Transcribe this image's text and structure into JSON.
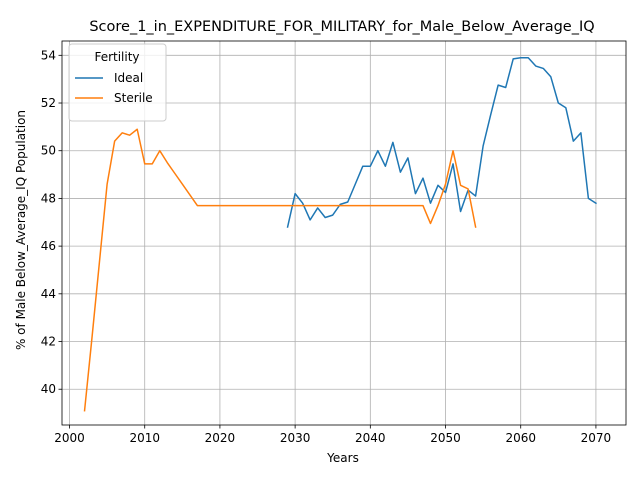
{
  "chart_data": {
    "type": "line",
    "title": "Score_1_in_EXPENDITURE_FOR_MILITARY_for_Male_Below_Average_IQ",
    "xlabel": "Years",
    "ylabel": "% of Male Below_Average_IQ Population",
    "xlim": [
      1999,
      2074
    ],
    "ylim": [
      38.5,
      54.6
    ],
    "x_ticks": [
      2000,
      2010,
      2020,
      2030,
      2040,
      2050,
      2060,
      2070
    ],
    "y_ticks": [
      40,
      42,
      44,
      46,
      48,
      50,
      52,
      54
    ],
    "grid": true,
    "legend": {
      "title": "Fertility",
      "placement": "top-left"
    },
    "series": [
      {
        "name": "Ideal",
        "color": "#1f77b4",
        "x": [
          2029,
          2030,
          2031,
          2032,
          2033,
          2034,
          2035,
          2036,
          2037,
          2038,
          2039,
          2040,
          2041,
          2042,
          2043,
          2044,
          2045,
          2046,
          2047,
          2048,
          2049,
          2050,
          2051,
          2052,
          2053,
          2054,
          2055,
          2056,
          2057,
          2058,
          2059,
          2060,
          2061,
          2062,
          2063,
          2064,
          2065,
          2066,
          2067,
          2068,
          2069,
          2070
        ],
        "y": [
          46.8,
          48.2,
          47.8,
          47.1,
          47.6,
          47.2,
          47.3,
          47.75,
          47.85,
          48.6,
          49.35,
          49.35,
          50.0,
          49.35,
          50.35,
          49.1,
          49.7,
          48.2,
          48.85,
          47.8,
          48.55,
          48.25,
          49.45,
          47.45,
          48.35,
          48.1,
          50.2,
          51.5,
          52.75,
          52.65,
          53.85,
          53.9,
          53.9,
          53.55,
          53.45,
          53.1,
          52.0,
          51.8,
          50.4,
          50.75,
          48.0,
          47.8
        ]
      },
      {
        "name": "Sterile",
        "color": "#ff7f0e",
        "x": [
          2002,
          2003,
          2004,
          2005,
          2006,
          2007,
          2008,
          2009,
          2010,
          2011,
          2012,
          2013,
          2014,
          2015,
          2016,
          2017,
          2018,
          2019,
          2020,
          2021,
          2022,
          2023,
          2024,
          2025,
          2026,
          2027,
          2028,
          2029,
          2030,
          2031,
          2032,
          2033,
          2034,
          2035,
          2036,
          2037,
          2038,
          2039,
          2040,
          2041,
          2042,
          2043,
          2044,
          2045,
          2046,
          2047,
          2048,
          2049,
          2050,
          2051,
          2052,
          2053,
          2054
        ],
        "y": [
          39.1,
          42.2,
          45.4,
          48.6,
          50.4,
          50.75,
          50.65,
          50.9,
          49.45,
          49.45,
          50.0,
          49.5,
          49.05,
          48.6,
          48.15,
          47.7,
          47.7,
          47.7,
          47.7,
          47.7,
          47.7,
          47.7,
          47.7,
          47.7,
          47.7,
          47.7,
          47.7,
          47.7,
          47.7,
          47.7,
          47.7,
          47.7,
          47.7,
          47.7,
          47.7,
          47.7,
          47.7,
          47.7,
          47.7,
          47.7,
          47.7,
          47.7,
          47.7,
          47.7,
          47.7,
          47.7,
          46.95,
          47.7,
          48.6,
          50.0,
          48.55,
          48.4,
          46.8
        ]
      }
    ]
  }
}
